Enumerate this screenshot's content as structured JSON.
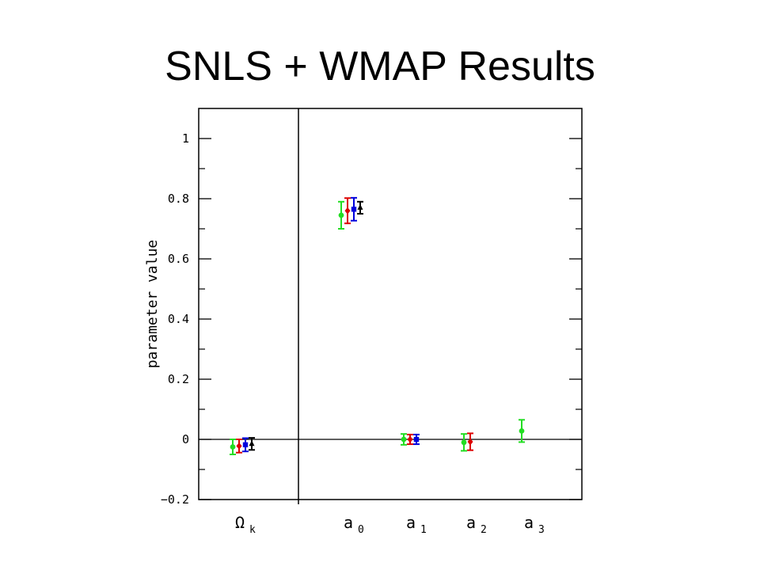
{
  "slide": {
    "title": "SNLS + WMAP Results"
  },
  "chart_data": {
    "type": "scatter",
    "title": "",
    "ylabel": "parameter value",
    "xlabel": "",
    "ylim": [
      -0.2,
      1.1
    ],
    "yticks": [
      -0.2,
      0,
      0.2,
      0.4,
      0.6,
      0.8,
      1
    ],
    "ytick_labels": [
      "−0.2",
      "0",
      "0.2",
      "0.4",
      "0.6",
      "0.8",
      "1"
    ],
    "grid": false,
    "reference_line_y": 0,
    "categories": [
      {
        "symbol": "Ω",
        "sub": "k"
      },
      {
        "symbol": "a",
        "sub": "0"
      },
      {
        "symbol": "a",
        "sub": "1"
      },
      {
        "symbol": "a",
        "sub": "2"
      },
      {
        "symbol": "a",
        "sub": "3"
      }
    ],
    "series": [
      {
        "color": "#22dd22",
        "marker": "circle",
        "points": [
          {
            "category": 0,
            "y": -0.025,
            "err": 0.025
          },
          {
            "category": 1,
            "y": 0.745,
            "err": 0.045
          },
          {
            "category": 2,
            "y": 0.0,
            "err": 0.018
          },
          {
            "category": 3,
            "y": -0.01,
            "err": 0.028
          },
          {
            "category": 4,
            "y": 0.028,
            "err": 0.037
          }
        ]
      },
      {
        "color": "#dd0000",
        "marker": "diamond",
        "points": [
          {
            "category": 0,
            "y": -0.022,
            "err": 0.022
          },
          {
            "category": 1,
            "y": 0.76,
            "err": 0.042
          },
          {
            "category": 2,
            "y": 0.0,
            "err": 0.016
          },
          {
            "category": 3,
            "y": -0.008,
            "err": 0.028
          }
        ]
      },
      {
        "color": "#0000dd",
        "marker": "square",
        "points": [
          {
            "category": 0,
            "y": -0.018,
            "err": 0.022
          },
          {
            "category": 1,
            "y": 0.765,
            "err": 0.038
          },
          {
            "category": 2,
            "y": 0.0,
            "err": 0.016
          }
        ]
      },
      {
        "color": "#000000",
        "marker": "triangle",
        "points": [
          {
            "category": 0,
            "y": -0.015,
            "err": 0.02
          },
          {
            "category": 1,
            "y": 0.77,
            "err": 0.02
          }
        ]
      }
    ]
  }
}
